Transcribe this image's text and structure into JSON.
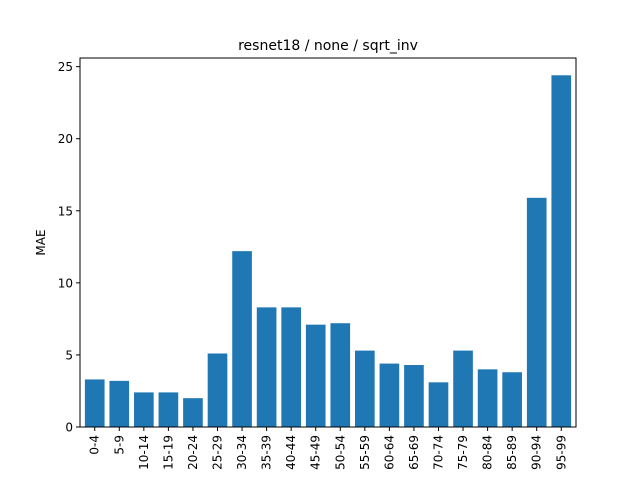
{
  "chart_data": {
    "type": "bar",
    "title": "resnet18 / none / sqrt_inv",
    "xlabel": "",
    "ylabel": "MAE",
    "categories": [
      "0-4",
      "5-9",
      "10-14",
      "15-19",
      "20-24",
      "25-29",
      "30-34",
      "35-39",
      "40-44",
      "45-49",
      "50-54",
      "55-59",
      "60-64",
      "65-69",
      "70-74",
      "75-79",
      "80-84",
      "85-89",
      "90-94",
      "95-99"
    ],
    "values": [
      3.3,
      3.2,
      2.4,
      2.4,
      2.0,
      5.1,
      12.2,
      8.3,
      8.3,
      7.1,
      7.2,
      5.3,
      4.4,
      4.3,
      3.1,
      5.3,
      4.0,
      3.8,
      15.9,
      24.4
    ],
    "ylim": [
      0,
      25.6
    ],
    "yticks": [
      0,
      5,
      10,
      15,
      20,
      25
    ],
    "ytick_labels": [
      "0",
      "5",
      "10",
      "15",
      "20",
      "25"
    ],
    "bar_color": "#1f77b4",
    "grid": false,
    "legend": "none"
  }
}
